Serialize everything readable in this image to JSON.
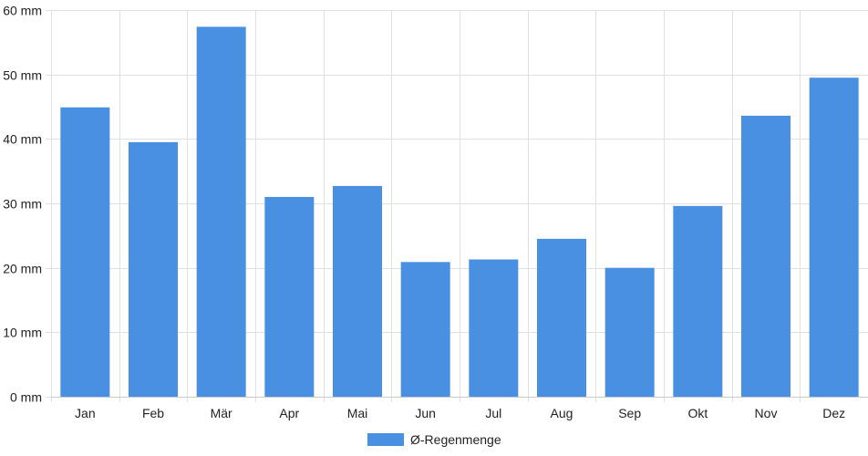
{
  "chart_data": {
    "type": "bar",
    "categories": [
      "Jan",
      "Feb",
      "Mär",
      "Apr",
      "Mai",
      "Jun",
      "Jul",
      "Aug",
      "Sep",
      "Okt",
      "Nov",
      "Dez"
    ],
    "series": [
      {
        "name": "Ø-Regenmenge",
        "values": [
          44.9,
          39.5,
          57.4,
          31.0,
          32.7,
          20.9,
          21.3,
          24.5,
          20.0,
          29.6,
          43.6,
          49.5
        ],
        "color": "#4a90e2"
      }
    ],
    "y_unit": "mm",
    "y_ticks": [
      0,
      10,
      20,
      30,
      40,
      50,
      60
    ],
    "ylim": [
      0,
      60
    ],
    "grid": true,
    "gridline_color": "#e0e0e0",
    "axis_color": "#cccccc",
    "legend_position": "bottom",
    "legend_label": "Ø-Regenmenge"
  }
}
